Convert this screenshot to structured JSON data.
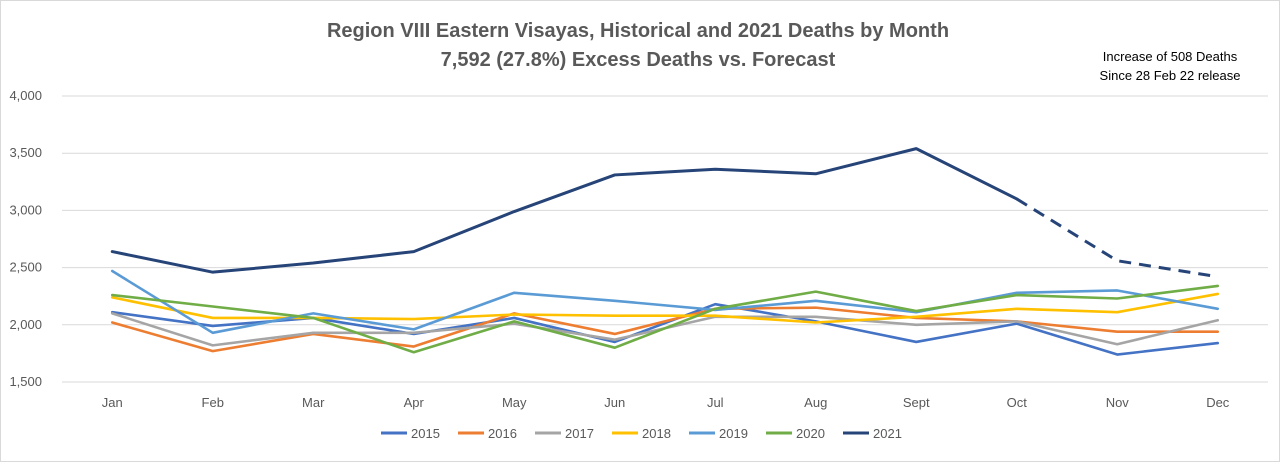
{
  "chart_data": {
    "type": "line",
    "title": "Region VIII Eastern Visayas, Historical and 2021 Deaths by Month",
    "subtitle": "7,592 (27.8%) Excess Deaths vs. Forecast",
    "annotation": [
      "Increase of 508 Deaths",
      "Since 28 Feb 22 release"
    ],
    "categories": [
      "Jan",
      "Feb",
      "Mar",
      "Apr",
      "May",
      "Jun",
      "Jul",
      "Aug",
      "Sept",
      "Oct",
      "Nov",
      "Dec"
    ],
    "ylim": [
      1500,
      4000
    ],
    "yticks": [
      1500,
      2000,
      2500,
      3000,
      3500,
      4000
    ],
    "ytick_labels": [
      "1,500",
      "2,000",
      "2,500",
      "3,000",
      "3,500",
      "4,000"
    ],
    "grid": true,
    "legend_position": "bottom",
    "series": [
      {
        "name": "2015",
        "color": "#4472c4",
        "values": [
          2110,
          1990,
          2060,
          1920,
          2060,
          1850,
          2180,
          2030,
          1850,
          2010,
          1740,
          1840
        ]
      },
      {
        "name": "2016",
        "color": "#ed7d31",
        "values": [
          2020,
          1770,
          1920,
          1810,
          2100,
          1920,
          2140,
          2150,
          2060,
          2030,
          1940,
          1940
        ]
      },
      {
        "name": "2017",
        "color": "#a5a5a5",
        "values": [
          2100,
          1820,
          1930,
          1930,
          2010,
          1870,
          2070,
          2070,
          2000,
          2030,
          1830,
          2040
        ]
      },
      {
        "name": "2018",
        "color": "#ffc000",
        "values": [
          2240,
          2060,
          2060,
          2050,
          2090,
          2080,
          2080,
          2020,
          2070,
          2140,
          2110,
          2270
        ]
      },
      {
        "name": "2019",
        "color": "#5b9bd5",
        "values": [
          2470,
          1930,
          2100,
          1960,
          2280,
          2210,
          2130,
          2210,
          2110,
          2280,
          2300,
          2140
        ]
      },
      {
        "name": "2020",
        "color": "#70ad47",
        "values": [
          2260,
          2160,
          2060,
          1760,
          2030,
          1800,
          2140,
          2290,
          2120,
          2260,
          2230,
          2340
        ]
      },
      {
        "name": "2021",
        "color": "#264478",
        "values": [
          2640,
          2460,
          2540,
          2640,
          2990,
          3310,
          3360,
          3320,
          3540,
          3100,
          2560,
          2420
        ],
        "dashed_from_index": 9
      }
    ]
  }
}
